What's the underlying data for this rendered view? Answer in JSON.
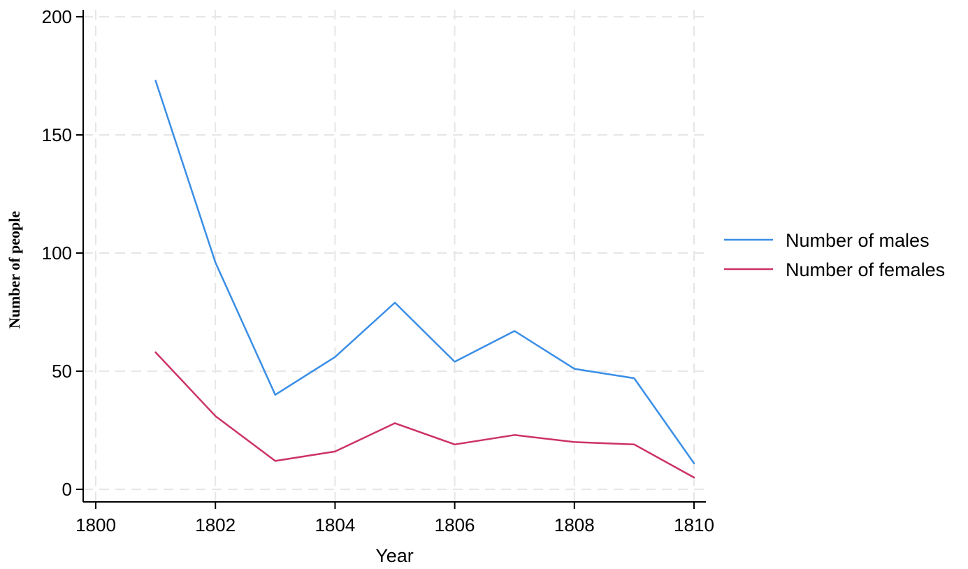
{
  "chart_data": {
    "type": "line",
    "xlabel": "Year",
    "ylabel": "Number of people",
    "xlim": [
      1800,
      1810
    ],
    "ylim": [
      0,
      200
    ],
    "xticks": [
      1800,
      1802,
      1804,
      1806,
      1808,
      1810
    ],
    "yticks": [
      0,
      50,
      100,
      150,
      200
    ],
    "grid": true,
    "legend": "right",
    "x": [
      1801,
      1802,
      1803,
      1804,
      1805,
      1806,
      1807,
      1808,
      1809,
      1810
    ],
    "series": [
      {
        "name": "Number of males",
        "color": "#3a8ee6",
        "values": [
          173,
          96,
          40,
          56,
          79,
          54,
          67,
          51,
          47,
          11
        ]
      },
      {
        "name": "Number of females",
        "color": "#cc3366",
        "values": [
          58,
          31,
          12,
          16,
          28,
          19,
          23,
          20,
          19,
          5
        ]
      }
    ]
  }
}
